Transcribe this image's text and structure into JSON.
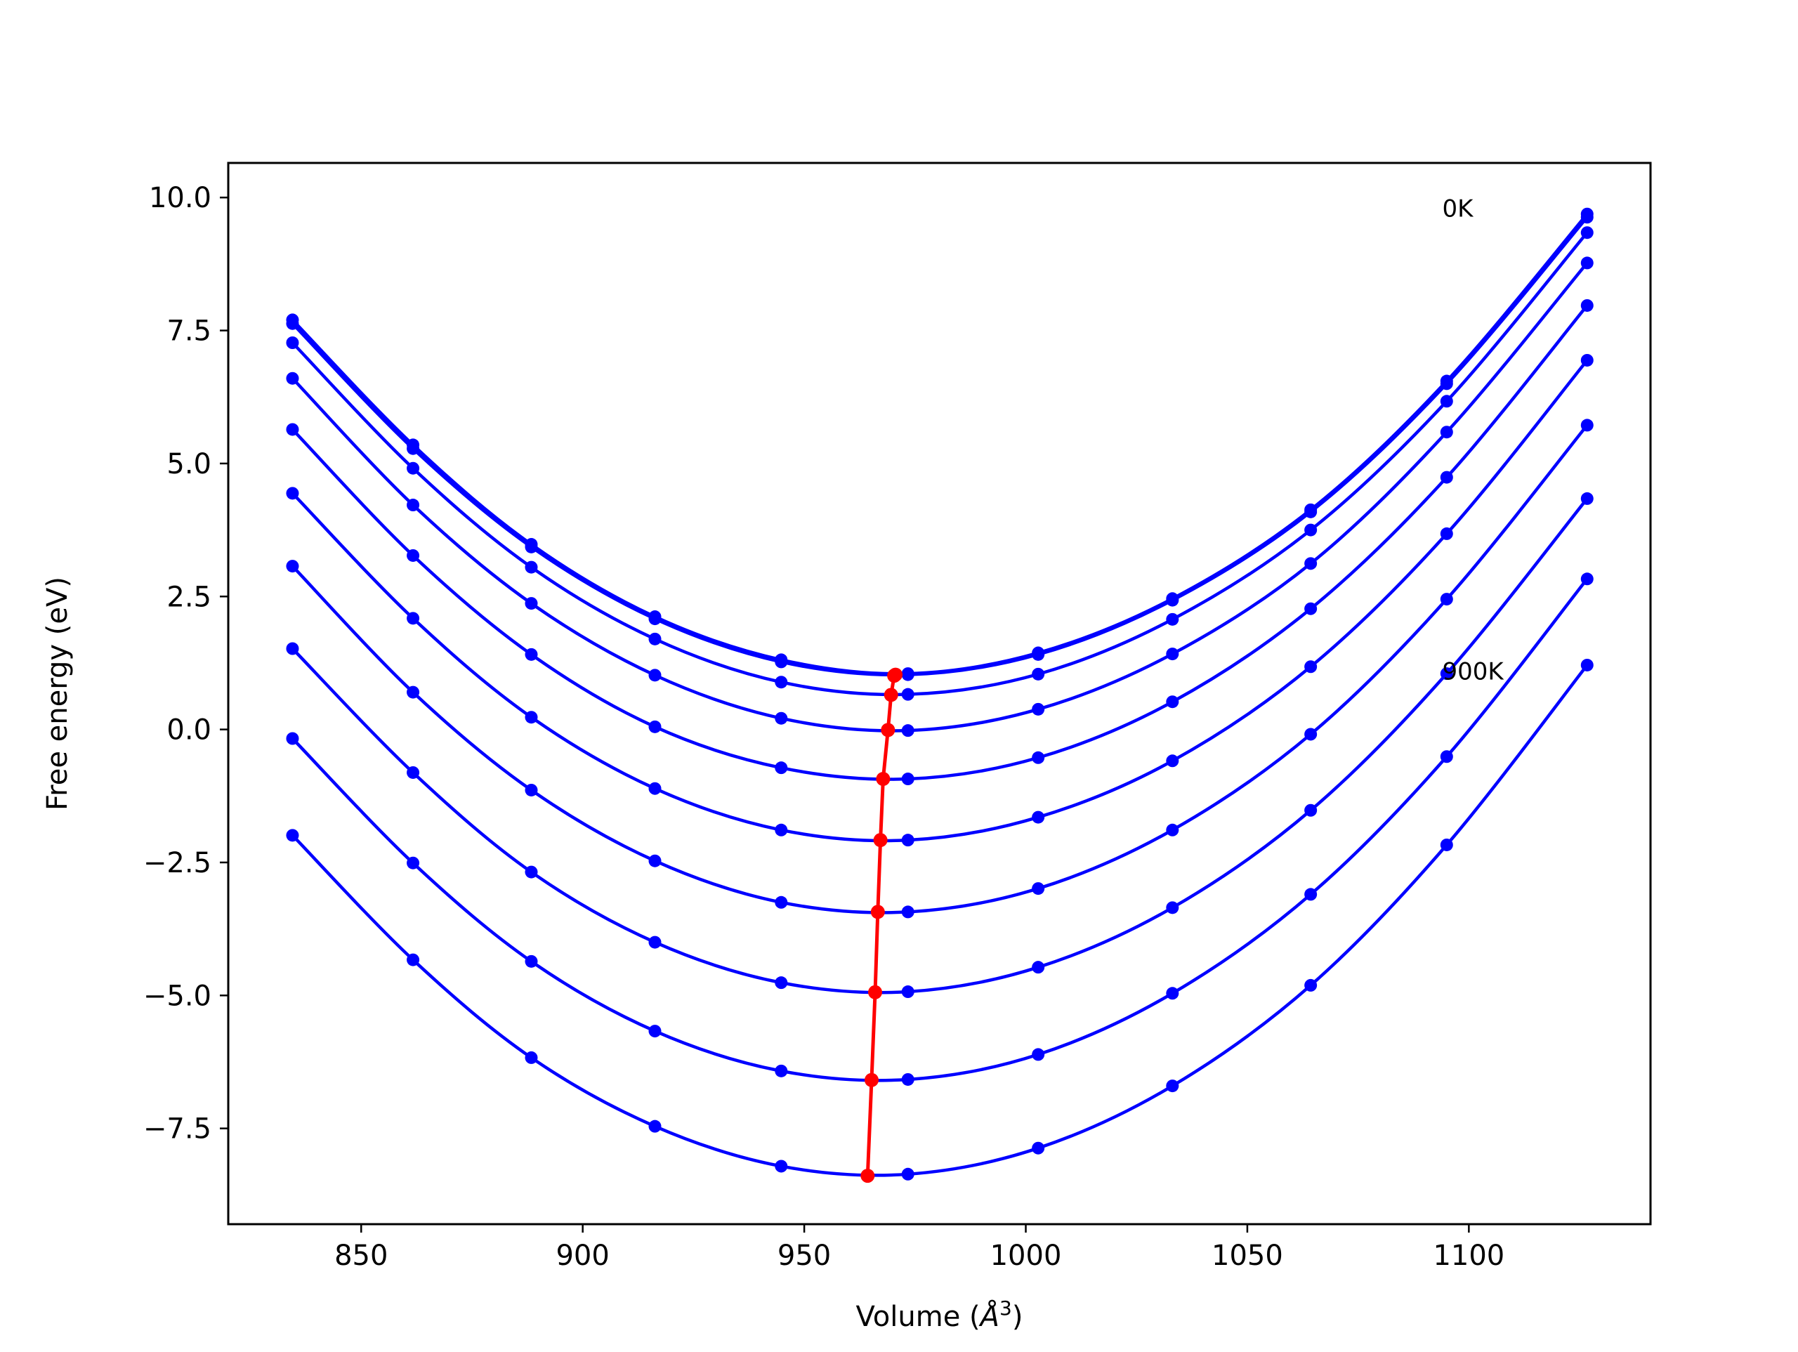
{
  "chart_data": {
    "type": "line",
    "title": "",
    "xlabel": "Volume (",
    "xlabel_unit": "Å",
    "xlabel_exp": "3",
    "xlabel_close": ")",
    "ylabel": "Free energy (eV)",
    "xlim": [
      820,
      1141
    ],
    "ylim": [
      -9.3,
      10.65
    ],
    "xticks": [
      850,
      900,
      950,
      1000,
      1050,
      1100
    ],
    "yticks": [
      10.0,
      7.5,
      5.0,
      2.5,
      0.0,
      -2.5,
      -5.0,
      -7.5
    ],
    "xtick_labels": [
      "850",
      "900",
      "950",
      "1000",
      "1050",
      "1100"
    ],
    "ytick_labels": [
      "10.0",
      "7.5",
      "5.0",
      "2.5",
      "0.0",
      "−2.5",
      "−5.0",
      "−7.5"
    ],
    "annotations": [
      {
        "text": "0K",
        "x": 1094,
        "y": 9.8
      },
      {
        "text": "900K",
        "x": 1094,
        "y": 1.1
      }
    ],
    "grid": false,
    "x": [
      834.5,
      861.7,
      888.4,
      916.3,
      944.8,
      973.4,
      1002.8,
      1033.1,
      1064.3,
      1095.0,
      1126.7
    ],
    "series": [
      {
        "values": [
          7.7,
          5.35,
          3.48,
          2.12,
          1.31,
          1.05,
          1.44,
          2.46,
          4.13,
          6.55,
          9.69
        ]
      },
      {
        "values": [
          7.63,
          5.28,
          3.43,
          2.08,
          1.27,
          1.03,
          1.41,
          2.43,
          4.09,
          6.5,
          9.63
        ]
      },
      {
        "values": [
          7.27,
          4.91,
          3.05,
          1.7,
          0.89,
          0.66,
          1.04,
          2.07,
          3.75,
          6.17,
          9.34
        ]
      },
      {
        "values": [
          6.6,
          4.22,
          2.37,
          1.02,
          0.21,
          -0.02,
          0.38,
          1.42,
          3.12,
          5.59,
          8.77
        ]
      },
      {
        "values": [
          5.64,
          3.27,
          1.41,
          0.05,
          -0.72,
          -0.93,
          -0.53,
          0.52,
          2.27,
          4.74,
          7.97
        ]
      },
      {
        "values": [
          4.44,
          2.09,
          0.23,
          -1.11,
          -1.89,
          -2.08,
          -1.65,
          -0.59,
          1.18,
          3.68,
          6.94
        ]
      },
      {
        "values": [
          3.07,
          0.7,
          -1.14,
          -2.47,
          -3.25,
          -3.43,
          -2.99,
          -1.89,
          -0.09,
          2.45,
          5.72
        ]
      },
      {
        "values": [
          1.52,
          -0.81,
          -2.68,
          -4.0,
          -4.76,
          -4.93,
          -4.47,
          -3.35,
          -1.52,
          1.05,
          4.34
        ]
      },
      {
        "values": [
          -0.17,
          -2.51,
          -4.36,
          -5.67,
          -6.42,
          -6.58,
          -6.11,
          -4.96,
          -3.1,
          -0.51,
          2.83
        ]
      },
      {
        "values": [
          -1.99,
          -4.33,
          -6.17,
          -7.46,
          -8.21,
          -8.36,
          -7.87,
          -6.7,
          -4.81,
          -2.17,
          1.21
        ]
      }
    ],
    "equilibrium": {
      "x": [
        970.6,
        970.3,
        969.6,
        968.9,
        967.8,
        967.2,
        966.6,
        966.0,
        965.2,
        964.3
      ],
      "values": [
        1.03,
        1.01,
        0.65,
        -0.01,
        -0.93,
        -2.08,
        -3.43,
        -4.94,
        -6.59,
        -8.39
      ]
    },
    "colors": {
      "series": "#0000ff",
      "equilibrium": "#ff0000",
      "axes": "#000000"
    }
  }
}
